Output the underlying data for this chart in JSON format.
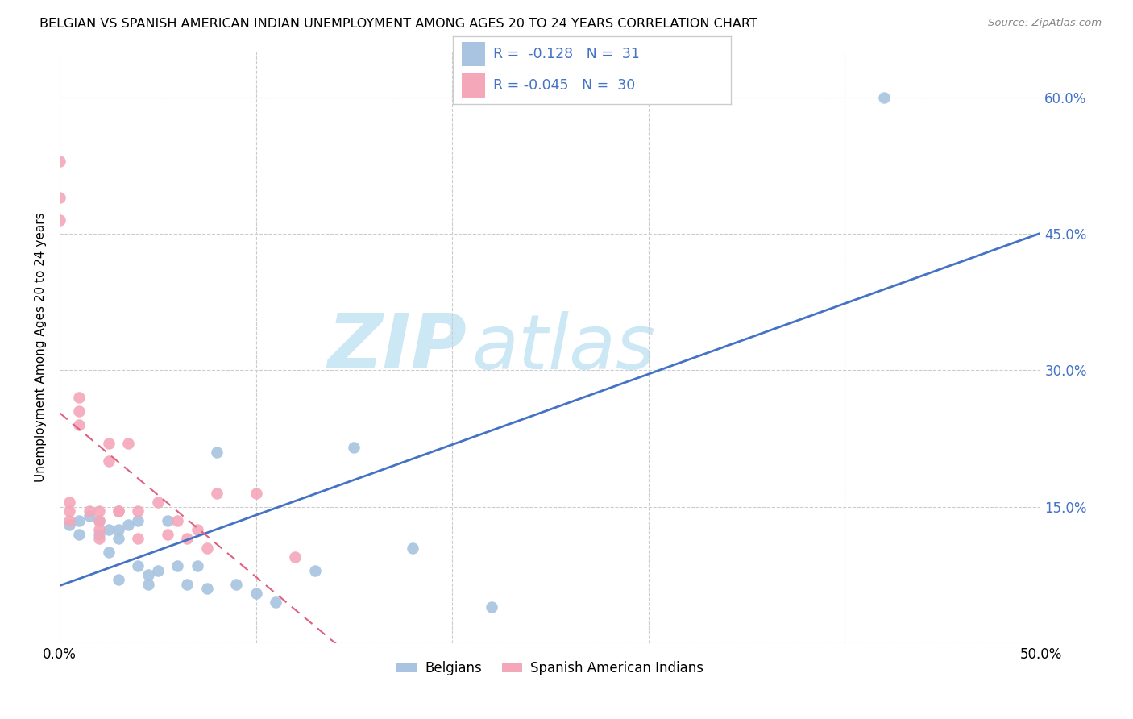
{
  "title": "BELGIAN VS SPANISH AMERICAN INDIAN UNEMPLOYMENT AMONG AGES 20 TO 24 YEARS CORRELATION CHART",
  "source": "Source: ZipAtlas.com",
  "ylabel": "Unemployment Among Ages 20 to 24 years",
  "xlim": [
    0.0,
    0.5
  ],
  "ylim": [
    0.0,
    0.65
  ],
  "belgian_R": "-0.128",
  "belgian_N": "31",
  "spanish_R": "-0.045",
  "spanish_N": "30",
  "belgian_color": "#a8c4e0",
  "spanish_color": "#f4a7b9",
  "belgian_line_color": "#4472c4",
  "spanish_line_color": "#e06080",
  "legend_belgian": "Belgians",
  "legend_spanish": "Spanish American Indians",
  "belgian_x": [
    0.005,
    0.01,
    0.01,
    0.015,
    0.02,
    0.02,
    0.025,
    0.025,
    0.03,
    0.03,
    0.03,
    0.035,
    0.04,
    0.04,
    0.045,
    0.045,
    0.05,
    0.055,
    0.06,
    0.065,
    0.07,
    0.075,
    0.08,
    0.09,
    0.1,
    0.11,
    0.13,
    0.15,
    0.18,
    0.22,
    0.42
  ],
  "belgian_y": [
    0.13,
    0.135,
    0.12,
    0.14,
    0.135,
    0.12,
    0.125,
    0.1,
    0.125,
    0.115,
    0.07,
    0.13,
    0.135,
    0.085,
    0.075,
    0.065,
    0.08,
    0.135,
    0.085,
    0.065,
    0.085,
    0.06,
    0.21,
    0.065,
    0.055,
    0.045,
    0.08,
    0.215,
    0.105,
    0.04,
    0.6
  ],
  "spanish_x": [
    0.0,
    0.0,
    0.0,
    0.005,
    0.005,
    0.005,
    0.01,
    0.01,
    0.01,
    0.015,
    0.02,
    0.02,
    0.02,
    0.02,
    0.025,
    0.025,
    0.03,
    0.03,
    0.035,
    0.04,
    0.04,
    0.05,
    0.055,
    0.06,
    0.065,
    0.07,
    0.075,
    0.08,
    0.1,
    0.12
  ],
  "spanish_y": [
    0.53,
    0.49,
    0.465,
    0.155,
    0.145,
    0.135,
    0.27,
    0.255,
    0.24,
    0.145,
    0.145,
    0.135,
    0.125,
    0.115,
    0.22,
    0.2,
    0.145,
    0.145,
    0.22,
    0.145,
    0.115,
    0.155,
    0.12,
    0.135,
    0.115,
    0.125,
    0.105,
    0.165,
    0.165,
    0.095
  ],
  "watermark_zip": "ZIP",
  "watermark_atlas": "atlas",
  "watermark_color": "#cde8f5",
  "background_color": "#ffffff",
  "grid_color": "#cccccc"
}
